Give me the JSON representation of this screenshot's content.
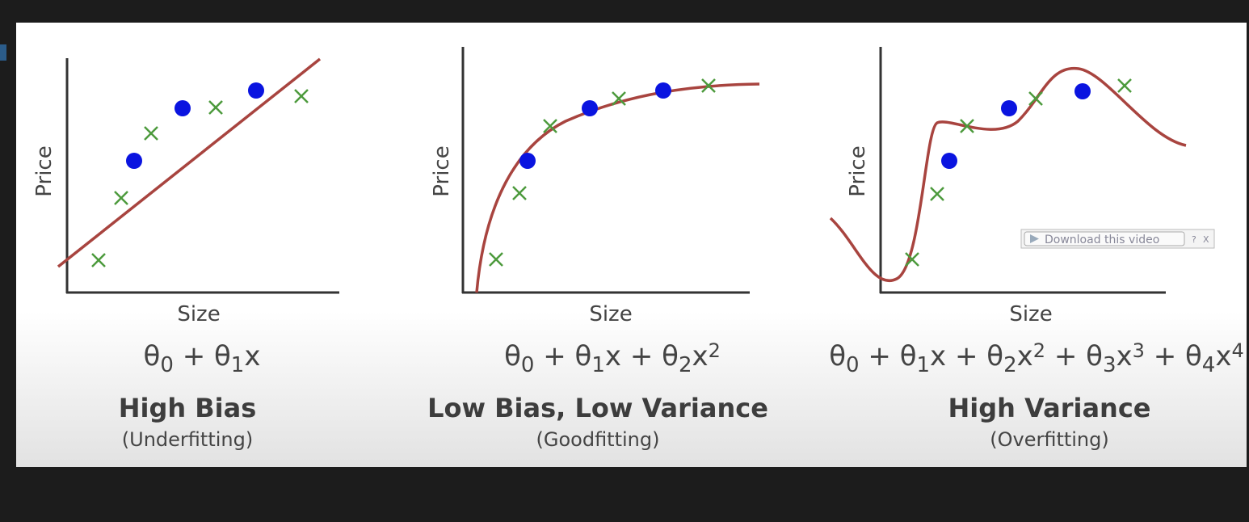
{
  "panels": [
    {
      "y_label": "Price",
      "x_label": "Size",
      "formula": [
        {
          "text": "θ"
        },
        {
          "sub": "0"
        },
        {
          "text": " + θ"
        },
        {
          "sub": "1"
        },
        {
          "text": "x"
        }
      ],
      "title": "High Bias",
      "subtitle": "(Underfitting)"
    },
    {
      "y_label": "Price",
      "x_label": "Size",
      "formula": [
        {
          "text": "θ"
        },
        {
          "sub": "0"
        },
        {
          "text": " + θ"
        },
        {
          "sub": "1"
        },
        {
          "text": "x  + θ"
        },
        {
          "sub": "2"
        },
        {
          "text": "x"
        },
        {
          "sup": "2"
        }
      ],
      "title": "Low Bias, Low Variance",
      "subtitle": "(Goodfitting)"
    },
    {
      "y_label": "Price",
      "x_label": "Size",
      "formula": [
        {
          "text": "θ"
        },
        {
          "sub": "0"
        },
        {
          "text": " + θ"
        },
        {
          "sub": "1"
        },
        {
          "text": "x  + θ"
        },
        {
          "sub": "2"
        },
        {
          "text": "x"
        },
        {
          "sup": "2"
        },
        {
          "text": "  + θ"
        },
        {
          "sub": "3"
        },
        {
          "text": "x"
        },
        {
          "sup": "3"
        },
        {
          "text": " + θ"
        },
        {
          "sub": "4"
        },
        {
          "text": "x"
        },
        {
          "sup": "4"
        }
      ],
      "title": "High Variance",
      "subtitle": "(Overfitting)"
    }
  ],
  "download_button": {
    "label": "Download this video",
    "help": "?",
    "close": "X"
  }
}
